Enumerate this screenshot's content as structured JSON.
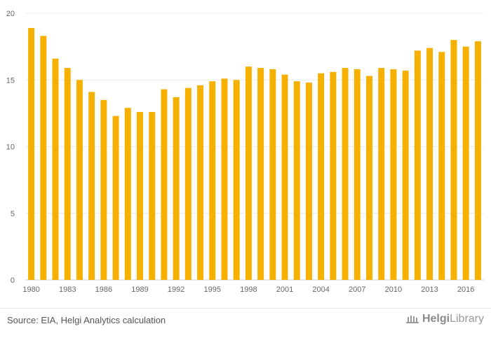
{
  "chart_data": {
    "type": "bar",
    "title": "",
    "xlabel": "",
    "ylabel": "",
    "ylim": [
      0,
      20
    ],
    "yticks": [
      0,
      5,
      10,
      15,
      20
    ],
    "grid": true,
    "bar_color": "#f5b000",
    "categories": [
      "1980",
      "1981",
      "1982",
      "1983",
      "1984",
      "1985",
      "1986",
      "1987",
      "1988",
      "1989",
      "1990",
      "1991",
      "1992",
      "1993",
      "1994",
      "1995",
      "1996",
      "1997",
      "1998",
      "1999",
      "2000",
      "2001",
      "2002",
      "2003",
      "2004",
      "2005",
      "2006",
      "2007",
      "2008",
      "2009",
      "2010",
      "2011",
      "2012",
      "2013",
      "2014",
      "2015",
      "2016",
      "2017"
    ],
    "x_tick_labels": [
      "1980",
      "1983",
      "1986",
      "1989",
      "1992",
      "1995",
      "1998",
      "2001",
      "2004",
      "2007",
      "2010",
      "2013",
      "2016"
    ],
    "values": [
      18.9,
      18.3,
      16.6,
      15.9,
      15.0,
      14.1,
      13.5,
      12.3,
      12.9,
      12.6,
      12.6,
      14.3,
      13.7,
      14.4,
      14.6,
      14.9,
      15.1,
      15.0,
      16.0,
      15.9,
      15.8,
      15.4,
      14.9,
      14.8,
      15.5,
      15.6,
      15.9,
      15.8,
      15.3,
      15.9,
      15.8,
      15.7,
      17.2,
      17.4,
      17.1,
      18.0,
      17.5,
      17.9
    ]
  },
  "footer": {
    "source": "Source: EIA, Helgi Analytics calculation",
    "brand_prefix": "Helgi",
    "brand_suffix": "Library"
  }
}
